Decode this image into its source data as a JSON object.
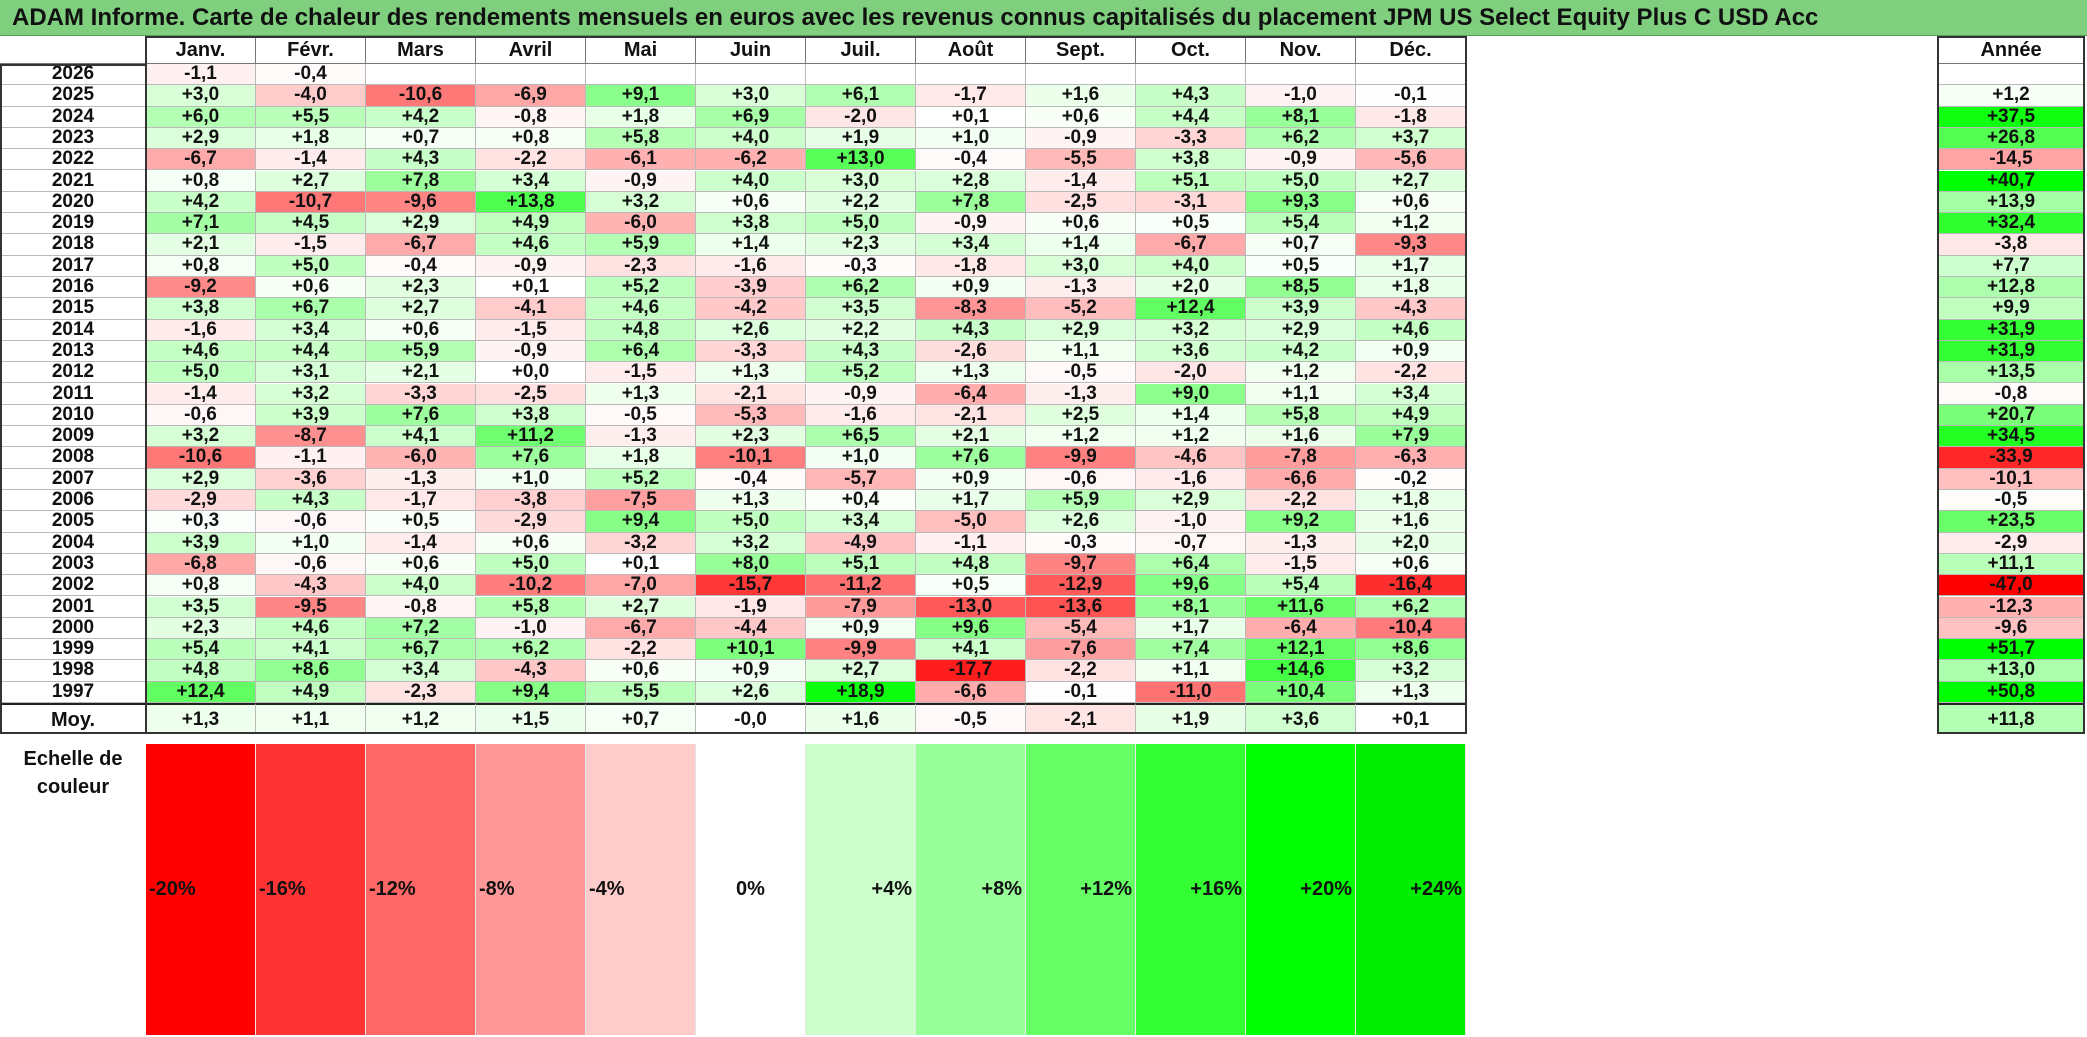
{
  "title": "ADAM Informe. Carte de chaleur des rendements mensuels en euros avec les revenus connus capitalisés du placement JPM US Select Equity Plus C USD Acc",
  "chart_data": {
    "type": "heatmap",
    "columns": [
      "Janv.",
      "Févr.",
      "Mars",
      "Avril",
      "Mai",
      "Juin",
      "Juil.",
      "Août",
      "Sept.",
      "Oct.",
      "Nov.",
      "Déc."
    ],
    "year_header": "Année",
    "rows": [
      {
        "year": "2026",
        "months": [
          "-1,1",
          "-0,4",
          "",
          "",
          "",
          "",
          "",
          "",
          "",
          "",
          "",
          ""
        ],
        "annual": ""
      },
      {
        "year": "2025",
        "months": [
          "+3,0",
          "-4,0",
          "-10,6",
          "-6,9",
          "+9,1",
          "+3,0",
          "+6,1",
          "-1,7",
          "+1,6",
          "+4,3",
          "-1,0",
          "-0,1"
        ],
        "annual": "+1,2"
      },
      {
        "year": "2024",
        "months": [
          "+6,0",
          "+5,5",
          "+4,2",
          "-0,8",
          "+1,8",
          "+6,9",
          "-2,0",
          "+0,1",
          "+0,6",
          "+4,4",
          "+8,1",
          "-1,8"
        ],
        "annual": "+37,5"
      },
      {
        "year": "2023",
        "months": [
          "+2,9",
          "+1,8",
          "+0,7",
          "+0,8",
          "+5,8",
          "+4,0",
          "+1,9",
          "+1,0",
          "-0,9",
          "-3,3",
          "+6,2",
          "+3,7"
        ],
        "annual": "+26,8"
      },
      {
        "year": "2022",
        "months": [
          "-6,7",
          "-1,4",
          "+4,3",
          "-2,2",
          "-6,1",
          "-6,2",
          "+13,0",
          "-0,4",
          "-5,5",
          "+3,8",
          "-0,9",
          "-5,6"
        ],
        "annual": "-14,5"
      },
      {
        "year": "2021",
        "months": [
          "+0,8",
          "+2,7",
          "+7,8",
          "+3,4",
          "-0,9",
          "+4,0",
          "+3,0",
          "+2,8",
          "-1,4",
          "+5,1",
          "+5,0",
          "+2,7"
        ],
        "annual": "+40,7"
      },
      {
        "year": "2020",
        "months": [
          "+4,2",
          "-10,7",
          "-9,6",
          "+13,8",
          "+3,2",
          "+0,6",
          "+2,2",
          "+7,8",
          "-2,5",
          "-3,1",
          "+9,3",
          "+0,6"
        ],
        "annual": "+13,9"
      },
      {
        "year": "2019",
        "months": [
          "+7,1",
          "+4,5",
          "+2,9",
          "+4,9",
          "-6,0",
          "+3,8",
          "+5,0",
          "-0,9",
          "+0,6",
          "+0,5",
          "+5,4",
          "+1,2"
        ],
        "annual": "+32,4"
      },
      {
        "year": "2018",
        "months": [
          "+2,1",
          "-1,5",
          "-6,7",
          "+4,6",
          "+5,9",
          "+1,4",
          "+2,3",
          "+3,4",
          "+1,4",
          "-6,7",
          "+0,7",
          "-9,3"
        ],
        "annual": "-3,8"
      },
      {
        "year": "2017",
        "months": [
          "+0,8",
          "+5,0",
          "-0,4",
          "-0,9",
          "-2,3",
          "-1,6",
          "-0,3",
          "-1,8",
          "+3,0",
          "+4,0",
          "+0,5",
          "+1,7"
        ],
        "annual": "+7,7"
      },
      {
        "year": "2016",
        "months": [
          "-9,2",
          "+0,6",
          "+2,3",
          "+0,1",
          "+5,2",
          "-3,9",
          "+6,2",
          "+0,9",
          "-1,3",
          "+2,0",
          "+8,5",
          "+1,8"
        ],
        "annual": "+12,8"
      },
      {
        "year": "2015",
        "months": [
          "+3,8",
          "+6,7",
          "+2,7",
          "-4,1",
          "+4,6",
          "-4,2",
          "+3,5",
          "-8,3",
          "-5,2",
          "+12,4",
          "+3,9",
          "-4,3"
        ],
        "annual": "+9,9"
      },
      {
        "year": "2014",
        "months": [
          "-1,6",
          "+3,4",
          "+0,6",
          "-1,5",
          "+4,8",
          "+2,6",
          "+2,2",
          "+4,3",
          "+2,9",
          "+3,2",
          "+2,9",
          "+4,6"
        ],
        "annual": "+31,9"
      },
      {
        "year": "2013",
        "months": [
          "+4,6",
          "+4,4",
          "+5,9",
          "-0,9",
          "+6,4",
          "-3,3",
          "+4,3",
          "-2,6",
          "+1,1",
          "+3,6",
          "+4,2",
          "+0,9"
        ],
        "annual": "+31,9"
      },
      {
        "year": "2012",
        "months": [
          "+5,0",
          "+3,1",
          "+2,1",
          "+0,0",
          "-1,5",
          "+1,3",
          "+5,2",
          "+1,3",
          "-0,5",
          "-2,0",
          "+1,2",
          "-2,2"
        ],
        "annual": "+13,5"
      },
      {
        "year": "2011",
        "months": [
          "-1,4",
          "+3,2",
          "-3,3",
          "-2,5",
          "+1,3",
          "-2,1",
          "-0,9",
          "-6,4",
          "-1,3",
          "+9,0",
          "+1,1",
          "+3,4"
        ],
        "annual": "-0,8"
      },
      {
        "year": "2010",
        "months": [
          "-0,6",
          "+3,9",
          "+7,6",
          "+3,8",
          "-0,5",
          "-5,3",
          "-1,6",
          "-2,1",
          "+2,5",
          "+1,4",
          "+5,8",
          "+4,9"
        ],
        "annual": "+20,7"
      },
      {
        "year": "2009",
        "months": [
          "+3,2",
          "-8,7",
          "+4,1",
          "+11,2",
          "-1,3",
          "+2,3",
          "+6,5",
          "+2,1",
          "+1,2",
          "+1,2",
          "+1,6",
          "+7,9"
        ],
        "annual": "+34,5"
      },
      {
        "year": "2008",
        "months": [
          "-10,6",
          "-1,1",
          "-6,0",
          "+7,6",
          "+1,8",
          "-10,1",
          "+1,0",
          "+7,6",
          "-9,9",
          "-4,6",
          "-7,8",
          "-6,3"
        ],
        "annual": "-33,9"
      },
      {
        "year": "2007",
        "months": [
          "+2,9",
          "-3,6",
          "-1,3",
          "+1,0",
          "+5,2",
          "-0,4",
          "-5,7",
          "+0,9",
          "-0,6",
          "-1,6",
          "-6,6",
          "-0,2"
        ],
        "annual": "-10,1"
      },
      {
        "year": "2006",
        "months": [
          "-2,9",
          "+4,3",
          "-1,7",
          "-3,8",
          "-7,5",
          "+1,3",
          "+0,4",
          "+1,7",
          "+5,9",
          "+2,9",
          "-2,2",
          "+1,8"
        ],
        "annual": "-0,5"
      },
      {
        "year": "2005",
        "months": [
          "+0,3",
          "-0,6",
          "+0,5",
          "-2,9",
          "+9,4",
          "+5,0",
          "+3,4",
          "-5,0",
          "+2,6",
          "-1,0",
          "+9,2",
          "+1,6"
        ],
        "annual": "+23,5"
      },
      {
        "year": "2004",
        "months": [
          "+3,9",
          "+1,0",
          "-1,4",
          "+0,6",
          "-3,2",
          "+3,2",
          "-4,9",
          "-1,1",
          "-0,3",
          "-0,7",
          "-1,3",
          "+2,0"
        ],
        "annual": "-2,9"
      },
      {
        "year": "2003",
        "months": [
          "-6,8",
          "-0,6",
          "+0,6",
          "+5,0",
          "+0,1",
          "+8,0",
          "+5,1",
          "+4,8",
          "-9,7",
          "+6,4",
          "-1,5",
          "+0,6"
        ],
        "annual": "+11,1"
      },
      {
        "year": "2002",
        "months": [
          "+0,8",
          "-4,3",
          "+4,0",
          "-10,2",
          "-7,0",
          "-15,7",
          "-11,2",
          "+0,5",
          "-12,9",
          "+9,6",
          "+5,4",
          "-16,4"
        ],
        "annual": "-47,0"
      },
      {
        "year": "2001",
        "months": [
          "+3,5",
          "-9,5",
          "-0,8",
          "+5,8",
          "+2,7",
          "-1,9",
          "-7,9",
          "-13,0",
          "-13,6",
          "+8,1",
          "+11,6",
          "+6,2"
        ],
        "annual": "-12,3"
      },
      {
        "year": "2000",
        "months": [
          "+2,3",
          "+4,6",
          "+7,2",
          "-1,0",
          "-6,7",
          "-4,4",
          "+0,9",
          "+9,6",
          "-5,4",
          "+1,7",
          "-6,4",
          "-10,4"
        ],
        "annual": "-9,6"
      },
      {
        "year": "1999",
        "months": [
          "+5,4",
          "+4,1",
          "+6,7",
          "+6,2",
          "-2,2",
          "+10,1",
          "-9,9",
          "+4,1",
          "-7,6",
          "+7,4",
          "+12,1",
          "+8,6"
        ],
        "annual": "+51,7"
      },
      {
        "year": "1998",
        "months": [
          "+4,8",
          "+8,6",
          "+3,4",
          "-4,3",
          "+0,6",
          "+0,9",
          "+2,7",
          "-17,7",
          "-2,2",
          "+1,1",
          "+14,6",
          "+3,2"
        ],
        "annual": "+13,0"
      },
      {
        "year": "1997",
        "months": [
          "+12,4",
          "+4,9",
          "-2,3",
          "+9,4",
          "+5,5",
          "+2,6",
          "+18,9",
          "-6,6",
          "-0,1",
          "-11,0",
          "+10,4",
          "+1,3"
        ],
        "annual": "+50,8"
      }
    ],
    "average": {
      "label": "Moy.",
      "months": [
        "+1,3",
        "+1,1",
        "+1,2",
        "+1,5",
        "+0,7",
        "-0,0",
        "+1,6",
        "-0,5",
        "-2,1",
        "+1,9",
        "+3,6",
        "+0,1"
      ],
      "annual": "+11,8"
    },
    "color_scale": {
      "label": "Echelle de couleur",
      "stops": [
        {
          "label": "-20%",
          "value": -20,
          "color": "#ff0000"
        },
        {
          "label": "-16%",
          "value": -16,
          "color": "#ff3333"
        },
        {
          "label": "-12%",
          "value": -12,
          "color": "#ff6666"
        },
        {
          "label": "-8%",
          "value": -8,
          "color": "#ff9999"
        },
        {
          "label": "-4%",
          "value": -4,
          "color": "#ffcccc"
        },
        {
          "label": "0%",
          "value": 0,
          "color": "#ffffff"
        },
        {
          "label": "+4%",
          "value": 4,
          "color": "#ccffcc"
        },
        {
          "label": "+8%",
          "value": 8,
          "color": "#99ff99"
        },
        {
          "label": "+12%",
          "value": 12,
          "color": "#66ff66"
        },
        {
          "label": "+16%",
          "value": 16,
          "color": "#33ff33"
        },
        {
          "label": "+20%",
          "value": 20,
          "color": "#00ff00"
        },
        {
          "label": "+24%",
          "value": 24,
          "color": "#00ee00"
        }
      ]
    }
  }
}
